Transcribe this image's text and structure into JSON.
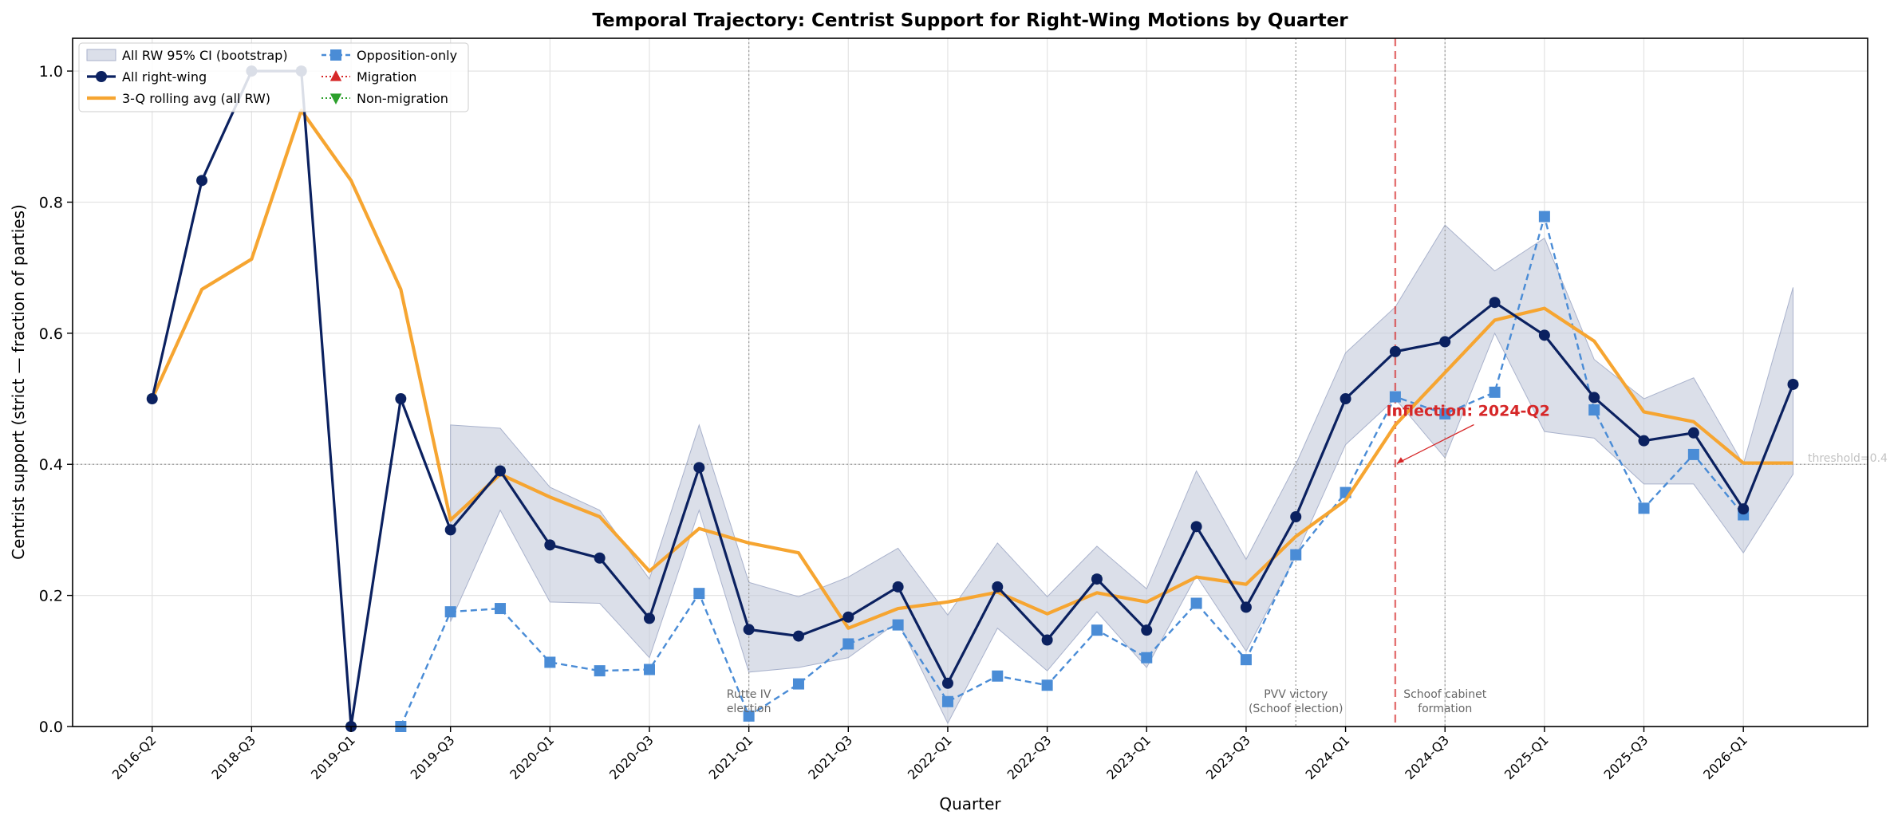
{
  "chart_data": {
    "type": "line",
    "title": "Temporal Trajectory: Centrist Support for Right-Wing Motions by Quarter",
    "xlabel": "Quarter",
    "ylabel": "Centrist support (strict — fraction of parties)",
    "ylim": [
      0,
      1.05
    ],
    "yticks": [
      0.0,
      0.2,
      0.4,
      0.6,
      0.8,
      1.0
    ],
    "ytick_labels": [
      "0.0",
      "0.2",
      "0.4",
      "0.6",
      "0.8",
      "1.0"
    ],
    "grid": true,
    "legend_position": "top-left",
    "x_tick_labels": [
      "2016-Q2",
      "2018-Q3",
      "2019-Q1",
      "2019-Q3",
      "2020-Q1",
      "2020-Q3",
      "2021-Q1",
      "2021-Q3",
      "2022-Q1",
      "2022-Q3",
      "2023-Q1",
      "2023-Q3",
      "2024-Q1",
      "2024-Q3",
      "2025-Q1",
      "2025-Q3",
      "2026-Q1"
    ],
    "x_tick_positions": [
      0,
      2,
      4,
      6,
      8,
      10,
      12,
      14,
      16,
      18,
      20,
      22,
      24,
      26,
      28,
      30,
      32
    ],
    "x_range": [
      -1.6,
      34.5
    ],
    "series": [
      {
        "name": "All right-wing",
        "style": "line-circle",
        "color": "#0b2160",
        "x": [
          0,
          1,
          2,
          3,
          4,
          5,
          6,
          7,
          8,
          9,
          10,
          11,
          12,
          13,
          14,
          15,
          16,
          17,
          18,
          19,
          20,
          21,
          22,
          23,
          24,
          25,
          26,
          27,
          28,
          29,
          30,
          31,
          32,
          33
        ],
        "y": [
          0.5,
          0.833,
          1.0,
          1.0,
          0.0,
          0.5,
          0.3,
          0.39,
          0.277,
          0.257,
          0.165,
          0.395,
          0.148,
          0.138,
          0.167,
          0.213,
          0.066,
          0.213,
          0.132,
          0.225,
          0.147,
          0.305,
          0.182,
          0.32,
          0.5,
          0.572,
          0.587,
          0.647,
          0.597,
          0.502,
          0.436,
          0.448,
          0.332,
          0.522
        ]
      },
      {
        "name": "3-Q rolling avg (all RW)",
        "style": "thick-line",
        "color": "#f6a531",
        "x": [
          0,
          1,
          2,
          3,
          4,
          5,
          6,
          7,
          8,
          9,
          10,
          11,
          12,
          13,
          14,
          15,
          16,
          17,
          18,
          19,
          20,
          21,
          22,
          23,
          24,
          25,
          26,
          27,
          28,
          29,
          30,
          31,
          32,
          33
        ],
        "y": [
          0.5,
          0.667,
          0.713,
          0.94,
          0.833,
          0.667,
          0.315,
          0.385,
          0.35,
          0.32,
          0.237,
          0.302,
          0.28,
          0.265,
          0.15,
          0.18,
          0.19,
          0.205,
          0.172,
          0.204,
          0.19,
          0.228,
          0.217,
          0.29,
          0.345,
          0.46,
          0.54,
          0.62,
          0.638,
          0.588,
          0.48,
          0.465,
          0.402,
          0.402
        ]
      },
      {
        "name": "Opposition-only",
        "style": "dashed-square",
        "color": "#4a8cd6",
        "x": [
          5,
          6,
          7,
          8,
          9,
          10,
          11,
          12,
          13,
          14,
          15,
          16,
          17,
          18,
          19,
          20,
          21,
          22,
          23,
          24,
          25,
          26,
          27,
          28,
          29,
          30,
          31,
          32
        ],
        "y": [
          0.0,
          0.175,
          0.18,
          0.098,
          0.085,
          0.087,
          0.203,
          0.016,
          0.065,
          0.126,
          0.155,
          0.038,
          0.077,
          0.063,
          0.147,
          0.105,
          0.188,
          0.102,
          0.262,
          0.357,
          0.503,
          0.477,
          0.51,
          0.778,
          0.483,
          0.333,
          0.415,
          0.323
        ]
      },
      {
        "name": "Migration",
        "style": "dotted-triangle-up",
        "color": "#d62728",
        "x": [],
        "y": []
      },
      {
        "name": "Non-migration",
        "style": "dotted-triangle-down",
        "color": "#2ca02c",
        "x": [
          0,
          1,
          3,
          4,
          5,
          7,
          9,
          11,
          15,
          17,
          19,
          21,
          26,
          27,
          33
        ],
        "y": [
          0.5,
          0.833,
          1.0,
          0.0,
          0.5,
          0.39,
          0.257,
          0.395,
          0.213,
          0.213,
          0.225,
          0.305,
          0.587,
          0.647,
          0.522
        ]
      }
    ],
    "ci_band": {
      "name": "All RW 95% CI (bootstrap)",
      "color": "#c3cadb",
      "x": [
        6,
        7,
        8,
        9,
        10,
        11,
        12,
        13,
        14,
        15,
        16,
        17,
        18,
        19,
        20,
        21,
        22,
        23,
        24,
        25,
        26,
        27,
        28,
        29,
        30,
        31,
        32,
        33
      ],
      "lower": [
        0.16,
        0.33,
        0.19,
        0.188,
        0.105,
        0.33,
        0.083,
        0.09,
        0.105,
        0.16,
        0.005,
        0.15,
        0.085,
        0.175,
        0.09,
        0.23,
        0.115,
        0.26,
        0.43,
        0.5,
        0.41,
        0.6,
        0.45,
        0.44,
        0.37,
        0.37,
        0.265,
        0.385
      ],
      "upper": [
        0.46,
        0.455,
        0.365,
        0.33,
        0.225,
        0.46,
        0.22,
        0.198,
        0.228,
        0.272,
        0.17,
        0.28,
        0.198,
        0.275,
        0.21,
        0.39,
        0.255,
        0.4,
        0.57,
        0.64,
        0.765,
        0.695,
        0.745,
        0.56,
        0.5,
        0.532,
        0.4,
        0.67
      ]
    },
    "threshold": {
      "value": 0.4,
      "label": "threshold=0.4",
      "color": "#aaaaaa"
    },
    "inflection": {
      "x": 25,
      "label": "Inflection: 2024-Q2",
      "color": "#d62728",
      "arrow_to_y": 0.4,
      "text_x": 26.1,
      "text_y": 0.48
    },
    "events": [
      {
        "x": 12,
        "label_line1": "Rutte IV",
        "label_line2": "election"
      },
      {
        "x": 23,
        "label_line1": "PVV victory",
        "label_line2": "(Schoof election)"
      },
      {
        "x": 26,
        "label_line1": "Schoof cabinet",
        "label_line2": "formation"
      }
    ],
    "legend": [
      {
        "label": "All RW 95% CI (bootstrap)",
        "kind": "band"
      },
      {
        "label": "All right-wing",
        "kind": "all-rw"
      },
      {
        "label": "3-Q rolling avg (all RW)",
        "kind": "rolling"
      },
      {
        "label": "Opposition-only",
        "kind": "opposition"
      },
      {
        "label": "Migration",
        "kind": "migration"
      },
      {
        "label": "Non-migration",
        "kind": "nonmigration"
      }
    ]
  }
}
